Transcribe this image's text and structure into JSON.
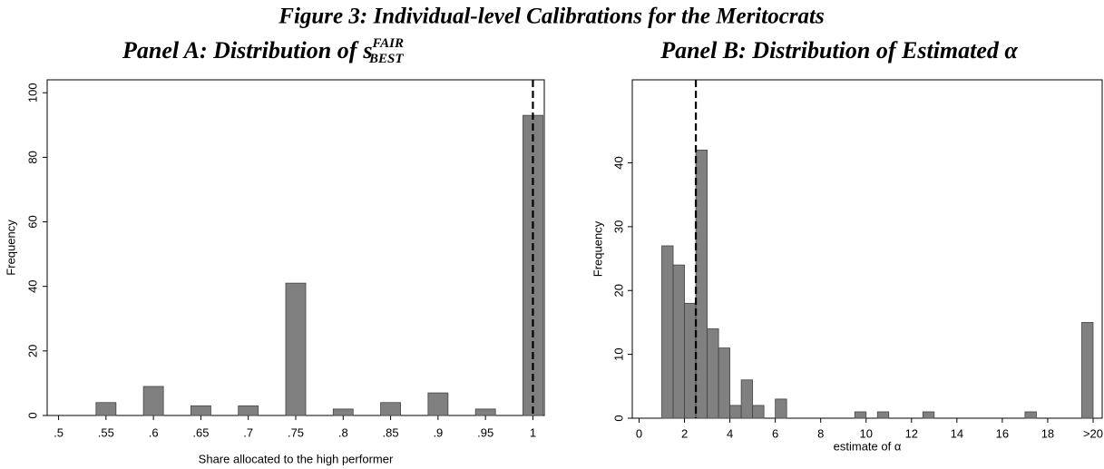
{
  "title": "Figure 3: Individual-level Calibrations for the Meritocrats",
  "chart_data": [
    {
      "type": "bar",
      "title": "Panel A: Distribution of",
      "title_symbol": "s",
      "title_sup": "FAIR",
      "title_sub": "BEST",
      "x_label": "Share allocated to the high performer",
      "y_label": "Frequency",
      "x": [
        0.55,
        0.6,
        0.65,
        0.7,
        0.75,
        0.8,
        0.85,
        0.9,
        0.95,
        1
      ],
      "values": [
        4,
        9,
        3,
        3,
        41,
        2,
        4,
        7,
        2,
        93
      ],
      "color": "#808080",
      "xlim": [
        0.488,
        1.012
      ],
      "xticks": [
        {
          "value": 0.5,
          "label": ".5"
        },
        {
          "value": 0.55,
          "label": ".55"
        },
        {
          "value": 0.6,
          "label": ".6"
        },
        {
          "value": 0.65,
          "label": ".65"
        },
        {
          "value": 0.7,
          "label": ".7"
        },
        {
          "value": 0.75,
          "label": ".75"
        },
        {
          "value": 0.8,
          "label": ".8"
        },
        {
          "value": 0.85,
          "label": ".85"
        },
        {
          "value": 0.9,
          "label": ".9"
        },
        {
          "value": 0.95,
          "label": ".95"
        },
        1
      ],
      "ylim": [
        0,
        104
      ],
      "yticks": [
        0,
        20,
        40,
        60,
        80,
        100
      ],
      "reference_line": 1
    },
    {
      "type": "histogram",
      "title": "Panel B: Distribution of Estimated α",
      "x_label": "estimate of α",
      "y_label": "Frequency",
      "bins": [
        1,
        1.5,
        2,
        2.5,
        3,
        3.5,
        4,
        4.5,
        5,
        5.5,
        6,
        6.5,
        7,
        7.5,
        8,
        8.5,
        9,
        9.5,
        10,
        10.5,
        11,
        11.5,
        12,
        12.5,
        13,
        13.5,
        14,
        14.5,
        15,
        15.5,
        16,
        16.5,
        17,
        17.5,
        18,
        18.5,
        19,
        19.5,
        20
      ],
      "values": [
        27,
        24,
        18,
        42,
        14,
        11,
        2,
        6,
        2,
        0,
        3,
        0,
        0,
        0,
        0,
        0,
        0,
        1,
        0,
        1,
        0,
        0,
        0,
        1,
        0,
        0,
        0,
        0,
        0,
        0,
        0,
        0,
        1,
        0,
        0,
        0,
        0,
        15
      ],
      "color": "#808080",
      "xlim": [
        -0.3,
        20.4
      ],
      "xticks": [
        0,
        2,
        4,
        6,
        8,
        10,
        12,
        14,
        16,
        18,
        {
          "value": 20,
          "label": ">20"
        }
      ],
      "ylim": [
        0,
        53
      ],
      "yticks": [
        0,
        10,
        20,
        30,
        40
      ],
      "reference_line": 2.5
    }
  ]
}
